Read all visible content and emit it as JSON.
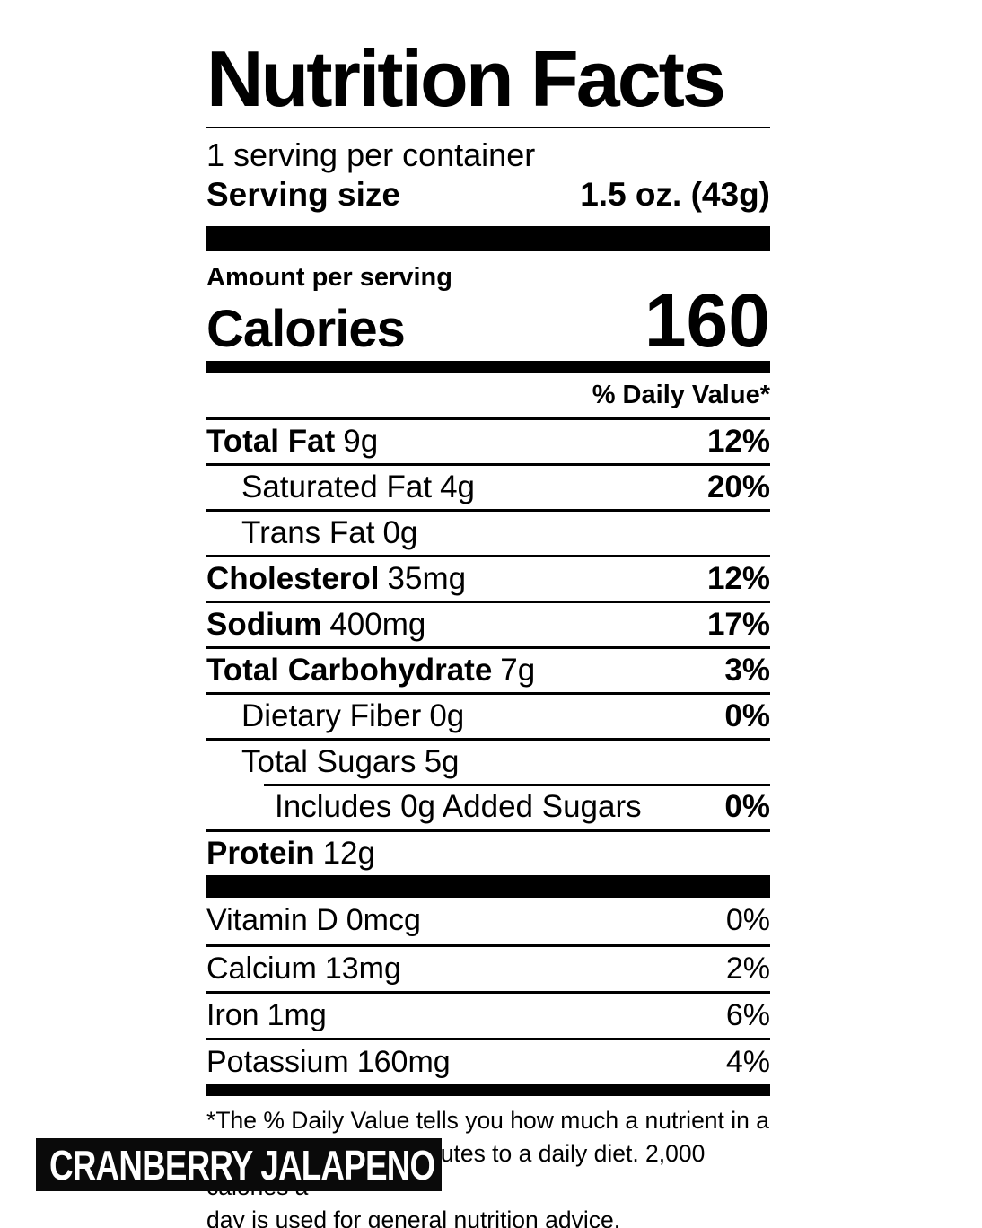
{
  "label": {
    "title": "Nutrition Facts",
    "servings_per_container": "1 serving per container",
    "serving_size": {
      "label": "Serving size",
      "value": "1.5 oz. (43g)"
    },
    "amount_per_serving": "Amount per serving",
    "calories": {
      "label": "Calories",
      "value": "160"
    },
    "daily_value_header": "% Daily Value*",
    "rows": [
      {
        "name": "Total Fat",
        "amount": "9g",
        "dv": "12%"
      },
      {
        "name": "Saturated Fat",
        "amount": "4g",
        "dv": "20%"
      },
      {
        "name": "Trans Fat",
        "amount": "0g",
        "dv": ""
      },
      {
        "name": "Cholesterol",
        "amount": "35mg",
        "dv": "12%"
      },
      {
        "name": "Sodium",
        "amount": "400mg",
        "dv": "17%"
      },
      {
        "name": "Total Carbohydrate",
        "amount": "7g",
        "dv": "3%"
      },
      {
        "name": "Dietary Fiber",
        "amount": "0g",
        "dv": "0%"
      },
      {
        "name": "Total Sugars",
        "amount": "5g",
        "dv": ""
      },
      {
        "name": "Includes 0g Added Sugars",
        "amount": "",
        "dv": "0%"
      },
      {
        "name": "Protein",
        "amount": "12g",
        "dv": ""
      }
    ],
    "micronutrients": [
      {
        "name": "Vitamin D",
        "amount": "0mcg",
        "dv": "0%"
      },
      {
        "name": "Calcium",
        "amount": "13mg",
        "dv": "2%"
      },
      {
        "name": "Iron",
        "amount": "1mg",
        "dv": "6%"
      },
      {
        "name": "Potassium",
        "amount": "160mg",
        "dv": "4%"
      }
    ],
    "footnote_lines": [
      "*The % Daily Value tells you how much a nutrient in a",
      "serving of food contributes to a daily diet. 2,000 calories a",
      "day is used for general nutrition advice."
    ],
    "colors": {
      "ink": "#000000",
      "background": "#ffffff",
      "banner_bg": "#0a0a0a",
      "banner_text": "#ffffff"
    }
  },
  "flavor_banner": {
    "text": "CRANBERRY JALAPENO"
  }
}
